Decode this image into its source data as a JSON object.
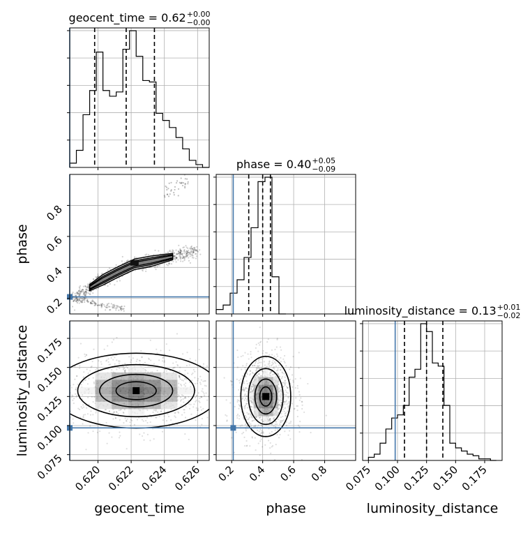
{
  "chart_data": {
    "type": "corner",
    "parameters": [
      "geocent_time",
      "phase",
      "luminosity_distance"
    ],
    "truth_color": "#4477aa",
    "truths": {
      "geocent_time": 0.6183,
      "phase": 0.21,
      "luminosity_distance": 0.098
    },
    "titles": [
      {
        "param": "geocent_time",
        "text": "geocent_time = 0.62",
        "upper": "+0.00",
        "lower": "−0.00"
      },
      {
        "param": "phase",
        "text": "phase = 0.40",
        "upper": "+0.05",
        "lower": "−0.09"
      },
      {
        "param": "luminosity_distance",
        "text": "luminosity_distance = 0.13",
        "upper": "+0.01",
        "lower": "−0.02"
      }
    ],
    "axis_labels": {
      "x": [
        "geocent_time",
        "phase",
        "luminosity_distance"
      ],
      "y": [
        "phase",
        "luminosity_distance"
      ]
    },
    "ranges": {
      "geocent_time": [
        0.6183,
        0.6267
      ],
      "phase": [
        0.1,
        1.0
      ],
      "luminosity_distance": [
        0.07,
        0.19
      ]
    },
    "ticks": {
      "geocent_time": [
        "0.620",
        "0.622",
        "0.624",
        "0.626"
      ],
      "phase": [
        "0.2",
        "0.4",
        "0.6",
        "0.8"
      ],
      "luminosity_distance": [
        "0.075",
        "0.100",
        "0.125",
        "0.150",
        "0.175"
      ]
    },
    "quantiles": {
      "geocent_time": [
        0.6198,
        0.6217,
        0.6234
      ],
      "phase": [
        0.31,
        0.4,
        0.45
      ],
      "luminosity_distance": [
        0.106,
        0.125,
        0.139
      ]
    },
    "histograms": {
      "geocent_time": {
        "edges": [
          0.6183,
          0.6187,
          0.6191,
          0.6195,
          0.6199,
          0.6203,
          0.6207,
          0.6211,
          0.6215,
          0.6219,
          0.6223,
          0.6227,
          0.6231,
          0.6235,
          0.6239,
          0.6243,
          0.6247,
          0.6251,
          0.6255,
          0.6259,
          0.6263,
          0.6267
        ],
        "counts": [
          0.03,
          0.12,
          0.37,
          0.54,
          0.81,
          0.54,
          0.5,
          0.53,
          0.83,
          0.96,
          0.78,
          0.61,
          0.6,
          0.38,
          0.33,
          0.28,
          0.21,
          0.13,
          0.05,
          0.02,
          0.0
        ]
      },
      "phase": {
        "edges": [
          0.1,
          0.145,
          0.19,
          0.235,
          0.28,
          0.325,
          0.37,
          0.415,
          0.46,
          0.505,
          0.55
        ],
        "counts": [
          0.03,
          0.06,
          0.14,
          0.23,
          0.38,
          0.58,
          0.89,
          0.92,
          0.25,
          0.0
        ]
      },
      "luminosity_distance": {
        "edges": [
          0.075,
          0.08,
          0.085,
          0.09,
          0.095,
          0.1,
          0.105,
          0.11,
          0.115,
          0.12,
          0.125,
          0.13,
          0.135,
          0.14,
          0.145,
          0.15,
          0.155,
          0.16,
          0.165,
          0.17,
          0.175,
          0.18,
          0.185
        ],
        "counts": [
          0.02,
          0.04,
          0.11,
          0.2,
          0.27,
          0.29,
          0.35,
          0.53,
          0.58,
          0.87,
          0.82,
          0.62,
          0.6,
          0.35,
          0.11,
          0.08,
          0.06,
          0.04,
          0.03,
          0.01,
          0.01,
          0.0
        ]
      }
    },
    "density_cores": [
      {
        "panel": "geocent_time-phase",
        "ridge": [
          [
            0.6186,
            0.2
          ],
          [
            0.6195,
            0.27
          ],
          [
            0.6203,
            0.32
          ],
          [
            0.6212,
            0.37
          ],
          [
            0.6222,
            0.42
          ],
          [
            0.6232,
            0.44
          ],
          [
            0.6245,
            0.47
          ],
          [
            0.626,
            0.51
          ]
        ],
        "peak": [
          0.6222,
          0.43
        ]
      },
      {
        "panel": "geocent_time-luminosity_distance",
        "peak": [
          0.6223,
          0.13
        ],
        "spread": [
          0.0022,
          0.014
        ]
      },
      {
        "panel": "phase-luminosity_distance",
        "peak": [
          0.42,
          0.125
        ],
        "spread": [
          0.07,
          0.015
        ]
      }
    ]
  }
}
